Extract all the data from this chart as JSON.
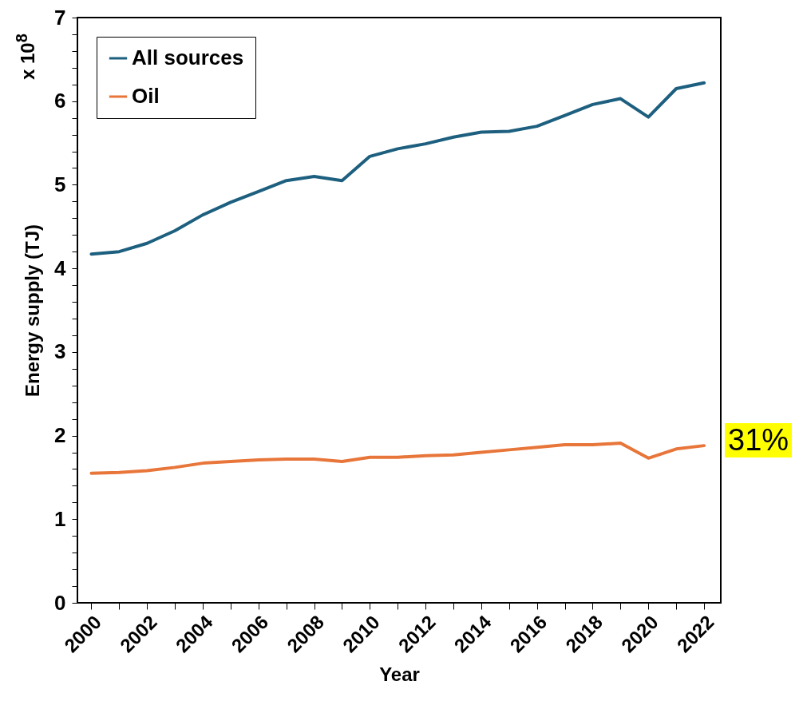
{
  "chart_data": {
    "type": "line",
    "xlabel": "Year",
    "ylabel": "Energy supply (TJ)",
    "x": [
      2000,
      2001,
      2002,
      2003,
      2004,
      2005,
      2006,
      2007,
      2008,
      2009,
      2010,
      2011,
      2012,
      2013,
      2014,
      2015,
      2016,
      2017,
      2018,
      2019,
      2020,
      2021,
      2022
    ],
    "series": [
      {
        "name": "All sources",
        "color": "#1d5f7f",
        "values": [
          4.17,
          4.2,
          4.3,
          4.45,
          4.64,
          4.79,
          4.92,
          5.05,
          5.1,
          5.05,
          5.34,
          5.43,
          5.49,
          5.57,
          5.63,
          5.64,
          5.7,
          5.83,
          5.96,
          6.03,
          5.81,
          6.15,
          6.22
        ]
      },
      {
        "name": "Oil",
        "color": "#e8763a",
        "values": [
          1.55,
          1.56,
          1.58,
          1.62,
          1.67,
          1.69,
          1.71,
          1.72,
          1.72,
          1.69,
          1.74,
          1.74,
          1.76,
          1.77,
          1.8,
          1.83,
          1.86,
          1.89,
          1.89,
          1.91,
          1.73,
          1.84,
          1.88
        ]
      }
    ],
    "xlim": [
      1999.5,
      2022.6
    ],
    "xticks": [
      2000,
      {
        "value": 2001,
        "label": null
      },
      2002,
      {
        "value": 2003,
        "label": null
      },
      2004,
      {
        "value": 2005,
        "label": null
      },
      2006,
      {
        "value": 2007,
        "label": null
      },
      2008,
      {
        "value": 2009,
        "label": null
      },
      2010,
      {
        "value": 2011,
        "label": null
      },
      2012,
      {
        "value": 2013,
        "label": null
      },
      2014,
      {
        "value": 2015,
        "label": null
      },
      2016,
      {
        "value": 2017,
        "label": null
      },
      2018,
      {
        "value": 2019,
        "label": null
      },
      2020,
      {
        "value": 2021,
        "label": null
      },
      2022
    ],
    "ylim": [
      0,
      7
    ],
    "yticks": [
      0,
      {
        "value": 0.2,
        "label": null
      },
      {
        "value": 0.4,
        "label": null
      },
      {
        "value": 0.6,
        "label": null
      },
      {
        "value": 0.8,
        "label": null
      },
      1,
      {
        "value": 1.2,
        "label": null
      },
      {
        "value": 1.4,
        "label": null
      },
      {
        "value": 1.6,
        "label": null
      },
      {
        "value": 1.8,
        "label": null
      },
      2,
      {
        "value": 2.2,
        "label": null
      },
      {
        "value": 2.4,
        "label": null
      },
      {
        "value": 2.6,
        "label": null
      },
      {
        "value": 2.8,
        "label": null
      },
      3,
      {
        "value": 3.2,
        "label": null
      },
      {
        "value": 3.4,
        "label": null
      },
      {
        "value": 3.6,
        "label": null
      },
      {
        "value": 3.8,
        "label": null
      },
      4,
      {
        "value": 4.2,
        "label": null
      },
      {
        "value": 4.4,
        "label": null
      },
      {
        "value": 4.6,
        "label": null
      },
      {
        "value": 4.8,
        "label": null
      },
      5,
      {
        "value": 5.2,
        "label": null
      },
      {
        "value": 5.4,
        "label": null
      },
      {
        "value": 5.6,
        "label": null
      },
      {
        "value": 5.8,
        "label": null
      },
      6,
      {
        "value": 6.2,
        "label": null
      },
      {
        "value": 6.4,
        "label": null
      },
      {
        "value": 6.6,
        "label": null
      },
      {
        "value": 6.8,
        "label": null
      },
      7
    ],
    "grid": false,
    "legend": "top left",
    "line_style": "solid",
    "annotations": [
      "x 10$^{8}$",
      "31%"
    ]
  }
}
